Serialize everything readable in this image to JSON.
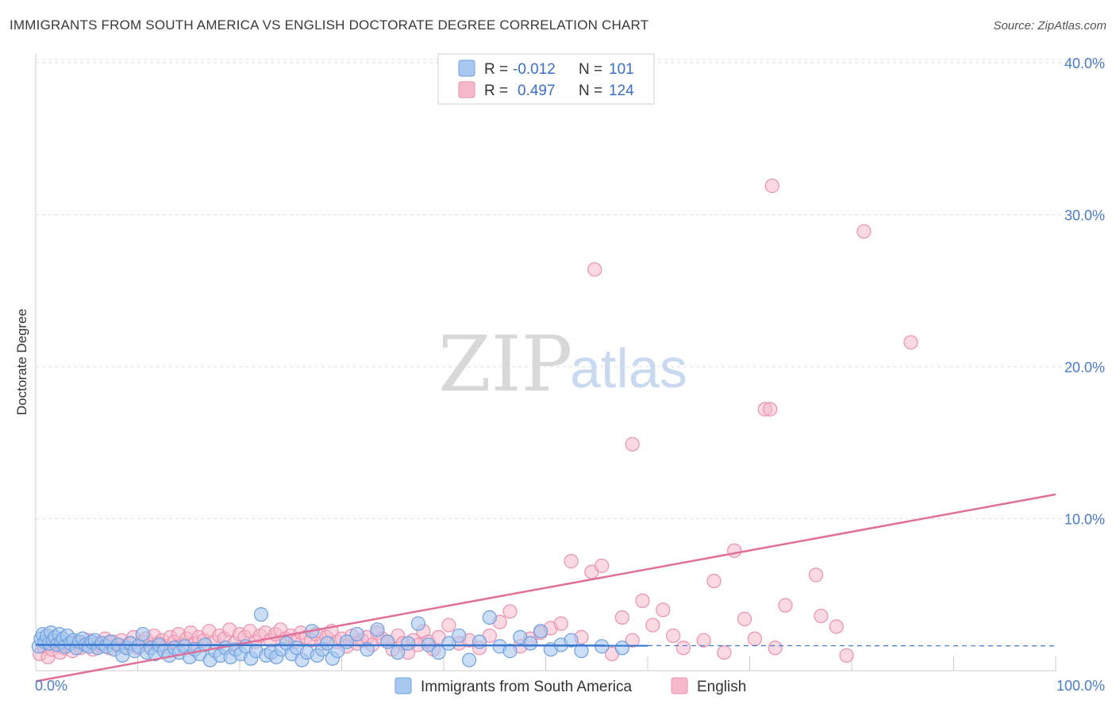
{
  "title": "IMMIGRANTS FROM SOUTH AMERICA VS ENGLISH DOCTORATE DEGREE CORRELATION CHART",
  "source": "Source: ZipAtlas.com",
  "watermark": {
    "zip": "ZIP",
    "atlas": "atlas"
  },
  "colors": {
    "blue_fill": "#a9c8f0",
    "blue_stroke": "#6f9fdc",
    "blue_line": "#3a78d0",
    "pink_fill": "#f6b9cc",
    "pink_stroke": "#e991ae",
    "pink_line": "#e0709a",
    "grid": "#dddddd",
    "tick_text": "#4a7cc7"
  },
  "legend": {
    "rows": [
      {
        "r_label": "R =",
        "r_value": "-0.012",
        "n_label": "N =",
        "n_value": "101"
      },
      {
        "r_label": "R =",
        "r_value": "0.497",
        "n_label": "N =",
        "n_value": "124"
      }
    ]
  },
  "chart_data": {
    "type": "scatter",
    "title": "IMMIGRANTS FROM SOUTH AMERICA VS ENGLISH DOCTORATE DEGREE CORRELATION CHART",
    "xlabel": "",
    "ylabel": "Doctorate Degree",
    "xlim": [
      0,
      100
    ],
    "ylim": [
      0,
      42
    ],
    "x_tick_labels": [
      "0.0%",
      "100.0%"
    ],
    "y_ticks": [
      10,
      20,
      30,
      40
    ],
    "y_tick_labels": [
      "10.0%",
      "20.0%",
      "30.0%",
      "40.0%"
    ],
    "grid": true,
    "legend_entries": [
      "Immigrants from South America",
      "English"
    ],
    "series": [
      {
        "name": "Immigrants from South America",
        "r": -0.012,
        "n": 101,
        "trend": {
          "x": [
            0,
            60
          ],
          "y": [
            1.7,
            1.65
          ],
          "dashed_extension_to": 100
        },
        "points": [
          [
            0.3,
            1.6
          ],
          [
            0.5,
            2.1
          ],
          [
            0.7,
            2.4
          ],
          [
            0.9,
            1.9
          ],
          [
            1.1,
            2.3
          ],
          [
            1.3,
            1.8
          ],
          [
            1.5,
            2.5
          ],
          [
            1.7,
            2.0
          ],
          [
            1.9,
            2.2
          ],
          [
            2.1,
            1.7
          ],
          [
            2.3,
            2.4
          ],
          [
            2.5,
            1.9
          ],
          [
            2.7,
            2.1
          ],
          [
            2.9,
            1.6
          ],
          [
            3.1,
            2.3
          ],
          [
            3.4,
            1.8
          ],
          [
            3.7,
            2.0
          ],
          [
            4.0,
            1.5
          ],
          [
            4.3,
            1.9
          ],
          [
            4.6,
            2.1
          ],
          [
            4.9,
            1.7
          ],
          [
            5.2,
            1.6
          ],
          [
            5.5,
            1.9
          ],
          [
            5.8,
            2.0
          ],
          [
            6.1,
            1.5
          ],
          [
            6.5,
            1.8
          ],
          [
            6.9,
            1.6
          ],
          [
            7.3,
            1.9
          ],
          [
            7.7,
            1.4
          ],
          [
            8.1,
            1.7
          ],
          [
            8.5,
            1.0
          ],
          [
            8.9,
            1.5
          ],
          [
            9.3,
            1.8
          ],
          [
            9.7,
            1.3
          ],
          [
            10.1,
            1.6
          ],
          [
            10.5,
            2.4
          ],
          [
            10.9,
            1.2
          ],
          [
            11.3,
            1.5
          ],
          [
            11.7,
            1.1
          ],
          [
            12.1,
            1.7
          ],
          [
            12.6,
            1.3
          ],
          [
            13.1,
            1.0
          ],
          [
            13.6,
            1.5
          ],
          [
            14.1,
            1.2
          ],
          [
            14.6,
            1.6
          ],
          [
            15.1,
            0.9
          ],
          [
            15.6,
            1.4
          ],
          [
            16.1,
            1.1
          ],
          [
            16.6,
            1.7
          ],
          [
            17.1,
            0.7
          ],
          [
            17.6,
            1.3
          ],
          [
            18.1,
            1.0
          ],
          [
            18.6,
            1.5
          ],
          [
            19.1,
            0.9
          ],
          [
            19.6,
            1.4
          ],
          [
            20.1,
            1.1
          ],
          [
            20.6,
            1.6
          ],
          [
            21.1,
            0.8
          ],
          [
            21.6,
            1.3
          ],
          [
            22.1,
            3.7
          ],
          [
            22.6,
            1.0
          ],
          [
            23.1,
            1.2
          ],
          [
            23.6,
            0.9
          ],
          [
            24.1,
            1.4
          ],
          [
            24.6,
            1.8
          ],
          [
            25.1,
            1.1
          ],
          [
            25.6,
            1.5
          ],
          [
            26.1,
            0.7
          ],
          [
            26.6,
            1.2
          ],
          [
            27.1,
            2.6
          ],
          [
            27.6,
            1.0
          ],
          [
            28.1,
            1.4
          ],
          [
            28.6,
            1.8
          ],
          [
            29.1,
            0.8
          ],
          [
            29.6,
            1.3
          ],
          [
            30.5,
            1.9
          ],
          [
            31.5,
            2.4
          ],
          [
            32.5,
            1.4
          ],
          [
            33.5,
            2.7
          ],
          [
            34.5,
            1.9
          ],
          [
            35.5,
            1.2
          ],
          [
            36.5,
            1.8
          ],
          [
            37.5,
            3.1
          ],
          [
            38.5,
            1.7
          ],
          [
            39.5,
            1.2
          ],
          [
            40.5,
            1.8
          ],
          [
            41.5,
            2.3
          ],
          [
            42.5,
            0.7
          ],
          [
            43.5,
            1.9
          ],
          [
            44.5,
            3.5
          ],
          [
            45.5,
            1.6
          ],
          [
            46.5,
            1.3
          ],
          [
            47.5,
            2.2
          ],
          [
            48.5,
            1.8
          ],
          [
            49.5,
            2.6
          ],
          [
            50.5,
            1.4
          ],
          [
            51.5,
            1.7
          ],
          [
            52.5,
            2.0
          ],
          [
            53.5,
            1.3
          ],
          [
            55.5,
            1.6
          ],
          [
            57.5,
            1.5
          ]
        ]
      },
      {
        "name": "English",
        "r": 0.497,
        "n": 124,
        "trend": {
          "x": [
            0,
            100
          ],
          "y": [
            -0.7,
            11.6
          ]
        },
        "points": [
          [
            0.4,
            1.1
          ],
          [
            0.8,
            1.6
          ],
          [
            1.2,
            0.9
          ],
          [
            1.6,
            1.4
          ],
          [
            2.0,
            1.8
          ],
          [
            2.4,
            1.2
          ],
          [
            2.8,
            1.5
          ],
          [
            3.2,
            1.7
          ],
          [
            3.6,
            1.3
          ],
          [
            4.0,
            1.9
          ],
          [
            4.4,
            1.5
          ],
          [
            4.8,
            1.7
          ],
          [
            5.2,
            2.0
          ],
          [
            5.6,
            1.4
          ],
          [
            6.0,
            1.8
          ],
          [
            6.4,
            1.6
          ],
          [
            6.8,
            2.1
          ],
          [
            7.2,
            1.5
          ],
          [
            7.6,
            1.9
          ],
          [
            8.0,
            1.7
          ],
          [
            8.4,
            2.0
          ],
          [
            8.8,
            1.6
          ],
          [
            9.2,
            1.8
          ],
          [
            9.6,
            2.2
          ],
          [
            10.0,
            1.5
          ],
          [
            10.4,
            1.9
          ],
          [
            10.8,
            2.1
          ],
          [
            11.2,
            1.7
          ],
          [
            11.6,
            2.3
          ],
          [
            12.0,
            1.8
          ],
          [
            12.4,
            2.0
          ],
          [
            12.8,
            1.6
          ],
          [
            13.2,
            2.2
          ],
          [
            13.6,
            1.9
          ],
          [
            14.0,
            2.4
          ],
          [
            14.4,
            1.7
          ],
          [
            14.8,
            2.1
          ],
          [
            15.2,
            2.5
          ],
          [
            15.6,
            1.8
          ],
          [
            16.0,
            2.2
          ],
          [
            16.5,
            2.0
          ],
          [
            17.0,
            2.6
          ],
          [
            17.5,
            1.9
          ],
          [
            18.0,
            2.3
          ],
          [
            18.5,
            2.1
          ],
          [
            19.0,
            2.7
          ],
          [
            19.5,
            1.8
          ],
          [
            20.0,
            2.4
          ],
          [
            20.5,
            2.2
          ],
          [
            21.0,
            2.6
          ],
          [
            21.5,
            1.9
          ],
          [
            22.0,
            2.3
          ],
          [
            22.5,
            2.5
          ],
          [
            23.0,
            2.0
          ],
          [
            23.5,
            2.4
          ],
          [
            24.0,
            2.7
          ],
          [
            24.5,
            2.1
          ],
          [
            25.0,
            2.3
          ],
          [
            25.5,
            1.9
          ],
          [
            26.0,
            2.5
          ],
          [
            26.5,
            2.2
          ],
          [
            27.0,
            2.0
          ],
          [
            27.5,
            2.4
          ],
          [
            28.0,
            1.8
          ],
          [
            28.5,
            2.2
          ],
          [
            29.0,
            2.6
          ],
          [
            29.5,
            1.9
          ],
          [
            30.0,
            2.1
          ],
          [
            30.5,
            1.6
          ],
          [
            31.0,
            2.3
          ],
          [
            31.5,
            1.8
          ],
          [
            32.0,
            2.0
          ],
          [
            32.5,
            2.2
          ],
          [
            33.0,
            1.7
          ],
          [
            33.5,
            2.5
          ],
          [
            34.0,
            2.1
          ],
          [
            34.5,
            1.9
          ],
          [
            35.0,
            1.4
          ],
          [
            35.5,
            2.3
          ],
          [
            36.0,
            1.8
          ],
          [
            36.5,
            1.2
          ],
          [
            37.0,
            2.0
          ],
          [
            37.5,
            1.7
          ],
          [
            38.0,
            2.6
          ],
          [
            38.5,
            1.9
          ],
          [
            39.0,
            1.4
          ],
          [
            39.5,
            2.2
          ],
          [
            40.5,
            3.0
          ],
          [
            41.5,
            1.8
          ],
          [
            42.5,
            2.0
          ],
          [
            43.5,
            1.5
          ],
          [
            44.5,
            2.3
          ],
          [
            45.5,
            3.2
          ],
          [
            46.5,
            3.9
          ],
          [
            47.5,
            1.6
          ],
          [
            48.5,
            2.1
          ],
          [
            49.5,
            2.5
          ],
          [
            50.5,
            2.8
          ],
          [
            51.5,
            3.1
          ],
          [
            52.5,
            7.2
          ],
          [
            53.5,
            2.2
          ],
          [
            54.5,
            6.5
          ],
          [
            55.5,
            6.9
          ],
          [
            56.5,
            1.1
          ],
          [
            57.5,
            3.5
          ],
          [
            58.5,
            2.0
          ],
          [
            59.5,
            4.6
          ],
          [
            60.5,
            3.0
          ],
          [
            61.5,
            4.0
          ],
          [
            62.5,
            2.3
          ],
          [
            63.5,
            1.5
          ],
          [
            65.5,
            2.0
          ],
          [
            66.5,
            5.9
          ],
          [
            67.5,
            1.2
          ],
          [
            68.5,
            7.9
          ],
          [
            69.5,
            3.4
          ],
          [
            70.5,
            2.1
          ],
          [
            71.5,
            17.2
          ],
          [
            72.5,
            1.5
          ],
          [
            73.5,
            4.3
          ],
          [
            76.5,
            6.3
          ],
          [
            77.0,
            3.6
          ],
          [
            78.5,
            2.9
          ],
          [
            79.5,
            1.0
          ]
        ],
        "outliers": [
          [
            72.2,
            31.9
          ],
          [
            81.2,
            28.9
          ],
          [
            54.8,
            26.4
          ],
          [
            85.8,
            21.6
          ],
          [
            72.0,
            17.2
          ],
          [
            58.5,
            14.9
          ]
        ]
      }
    ]
  },
  "ylabel": "Doctorate Degree",
  "x_tick_left": "0.0%",
  "x_tick_right": "100.0%",
  "bottom_legend": {
    "blue": "Immigrants from South America",
    "pink": "English"
  }
}
